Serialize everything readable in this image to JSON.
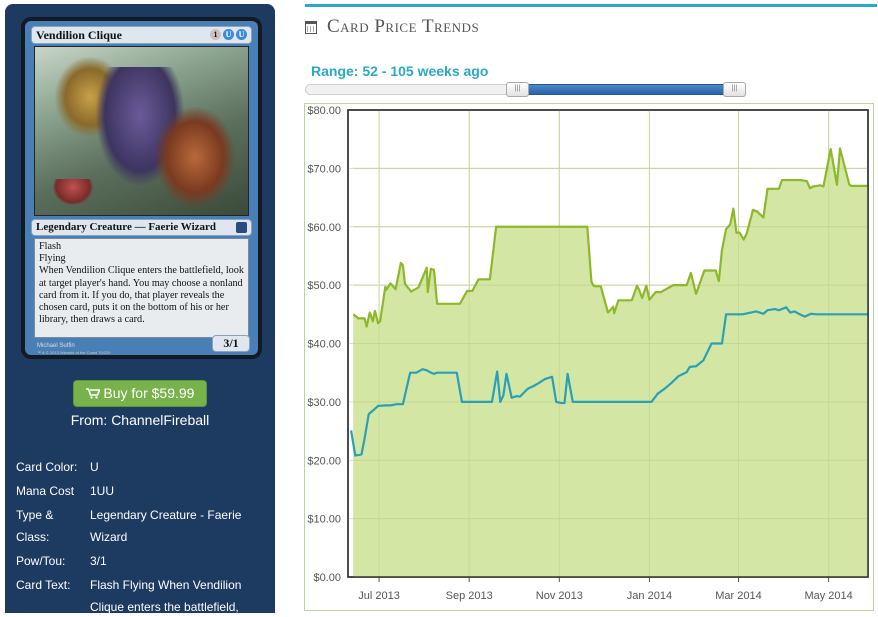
{
  "card": {
    "name": "Vendilion Clique",
    "mana": [
      "1",
      "U",
      "U"
    ],
    "type_line": "Legendary Creature — Faerie Wizard",
    "rules_text": [
      "Flash",
      "Flying",
      "When Vendilion Clique enters the battlefield, look at target player's hand. You may choose a nonland card from it. If you do, that player reveals the chosen card, puts it on the bottom of his or her library, then draws a card."
    ],
    "power_toughness": "3/1",
    "artist": "Michael Sutfin",
    "copyright": "™ & © 2013 Wizards of the Coast 70/229"
  },
  "buy": {
    "label": "Buy for $59.99",
    "icon": "shopping-cart-icon",
    "from": "From: ChannelFireball"
  },
  "attributes": [
    {
      "key": "Card Color:",
      "value": "U"
    },
    {
      "key": "Mana Cost",
      "value": "1UU"
    },
    {
      "key": "Type & Class:",
      "value": "Legendary Creature - Faerie Wizard"
    },
    {
      "key": "Pow/Tou:",
      "value": "3/1"
    },
    {
      "key": "Card Text:",
      "value": "Flash Flying When Vendilion Clique enters the battlefield,"
    }
  ],
  "header": {
    "title": "Card Price Trends",
    "icon": "calendar-icon"
  },
  "range": {
    "label": "Range: 52 - 105 weeks ago",
    "from": 52,
    "to": 105,
    "max": 105
  },
  "colors": {
    "accent": "#29a9c7",
    "sidebar": "#1d3a61",
    "buy": "#78b24a",
    "series_high": "#8db82a",
    "series_low": "#2aa0b8"
  },
  "chart_data": {
    "type": "area",
    "y_tick_labels": [
      "$0.00",
      "$10.00",
      "$20.00",
      "$30.00",
      "$40.00",
      "$50.00",
      "$60.00",
      "$70.00",
      "$80.00"
    ],
    "x_tick_labels": [
      "Jul 2013",
      "Sep 2013",
      "Nov 2013",
      "Jan 2014",
      "Mar 2014",
      "May 2014"
    ],
    "ylim": [
      0,
      80
    ],
    "x_unit": "weeks from the start of the plotted range",
    "x_ticks": [
      3,
      11.7,
      20.4,
      29.1,
      37.7,
      46.4
    ],
    "grid": true,
    "series": [
      {
        "x": [
          0.5,
          0.6,
          1,
          1.6,
          1.8,
          2.1,
          2.4,
          2.6,
          2.9,
          3.1,
          3.6,
          3.7,
          4.1,
          4.6,
          5.1,
          5.3,
          5.5,
          6.1,
          6.8,
          7.6,
          7.7,
          8,
          8.3,
          8.6,
          9.1,
          9.4,
          9.8,
          10,
          10.5,
          10.8,
          11.5,
          12,
          12.6,
          13.7,
          14.3,
          14.7,
          15.5,
          16.1,
          16.6,
          17,
          17.4,
          17.7,
          17.9,
          18.1,
          18.6,
          19.2,
          19.8,
          20.1,
          20.7,
          21.1,
          21.4,
          21.8,
          22.4,
          23.1,
          23.4,
          23.5,
          23.7,
          23.9,
          24.4,
          25.1,
          25.6,
          25.7,
          26.1,
          26.4,
          26.9,
          27.4,
          27.9,
          28.1,
          28.4,
          28.8,
          29.1,
          29.7,
          30.2,
          31.4,
          31.8,
          32.4,
          32.7,
          33.1,
          33.6,
          34.4,
          35.1,
          35.5,
          35.8,
          36.1,
          36.5,
          36.9,
          37.2,
          37.5,
          37.8,
          38.2,
          38.5,
          39.1,
          39.5,
          40.1,
          40.5,
          40.8,
          41.3,
          41.6,
          41.9,
          42.3,
          42.7,
          43.1,
          43.5,
          43.7,
          44.3,
          44.6,
          44.9,
          45.6,
          45.9,
          46.6,
          47.2,
          47.5,
          48.4,
          48.6,
          48.8,
          49.1,
          49.6,
          49.8,
          50.1,
          50.2
        ],
        "values": [
          44.9,
          44.9,
          44.3,
          44.3,
          42.9,
          45.3,
          43.8,
          45.6,
          43.5,
          43.8,
          49.7,
          49.2,
          50.3,
          49.3,
          53.8,
          53.4,
          50.2,
          48.9,
          49.6,
          53,
          48.8,
          52.8,
          52.6,
          46.8,
          46.8,
          46.8,
          46.8,
          46.8,
          46.8,
          46.8,
          49,
          49,
          51,
          51,
          60,
          60,
          60,
          60,
          60,
          60,
          60,
          60,
          60,
          60,
          60,
          60,
          60,
          60,
          60,
          60,
          60,
          60,
          60,
          60,
          52.9,
          50.6,
          49.9,
          49.8,
          49.8,
          45.3,
          46.3,
          45.2,
          47.4,
          47.4,
          47.4,
          47.4,
          49.9,
          49.2,
          47.8,
          49.9,
          47.5,
          48.8,
          48.8,
          50,
          50,
          50,
          50,
          52.1,
          48.5,
          52.5,
          52.5,
          52.5,
          50.7,
          56,
          59.6,
          60.4,
          63.1,
          59,
          59,
          57.8,
          58.9,
          62.9,
          62.6,
          61.6,
          66.5,
          66.5,
          66.5,
          66.5,
          68,
          68,
          68,
          68,
          68,
          68,
          67.8,
          66.6,
          66.9,
          67.1,
          66.9,
          73.3,
          67.2,
          73.4,
          67.2,
          67,
          67,
          67,
          67,
          67,
          67,
          67
        ]
      },
      {
        "x": [
          0.3,
          0.7,
          1.3,
          1.6,
          2,
          2.4,
          2.9,
          3.6,
          3.7,
          4.1,
          4.7,
          5.3,
          6,
          6.6,
          7.2,
          7.6,
          7.9,
          8.3,
          8.6,
          9.1,
          9.6,
          10.1,
          10.5,
          11,
          12.1,
          12.6,
          13.1,
          13.9,
          14.4,
          14.7,
          15,
          15.3,
          15.8,
          16.3,
          16.6,
          17.1,
          17.4,
          17.9,
          18.4,
          19,
          19.7,
          20.1,
          20.6,
          20.9,
          21.2,
          21.7,
          22.3,
          22.9,
          23.4,
          24,
          24.6,
          25.1,
          25.8,
          26.4,
          26.9,
          27.4,
          27.9,
          28.1,
          28.8,
          29.3,
          29.9,
          30.6,
          31.2,
          31.9,
          32.7,
          33,
          33.6,
          34.3,
          35.1,
          35.6,
          36.1,
          36.5,
          36.8,
          37.6,
          38.1,
          38.9,
          39.4,
          40.1,
          40.5,
          41.2,
          41.6,
          42.3,
          42.7,
          43.1,
          43.5,
          44.1,
          44.7,
          45.2,
          45.7,
          46.4,
          47.2,
          48.4,
          49.7,
          50.2
        ],
        "values": [
          25.1,
          20.8,
          21,
          23.7,
          27.9,
          28.5,
          29.3,
          29.4,
          29.4,
          29.4,
          29.6,
          29.6,
          35,
          35,
          35.6,
          35.4,
          35.1,
          34.8,
          35,
          35,
          35,
          35,
          35,
          30,
          30,
          30,
          30,
          30,
          35.2,
          30,
          31.1,
          34.8,
          30.7,
          31,
          30.9,
          31.8,
          32.3,
          32.7,
          33.2,
          33.9,
          34.3,
          30,
          29.8,
          29.8,
          34.8,
          30,
          30,
          30,
          30,
          30,
          30,
          30,
          30,
          30,
          30,
          30,
          30,
          30,
          30,
          30,
          31.4,
          32.3,
          33.2,
          34.4,
          35.1,
          36,
          36.1,
          37.1,
          40,
          40,
          40,
          45,
          45,
          45,
          45,
          45.3,
          45.5,
          45.1,
          45.7,
          45.9,
          45.7,
          46.2,
          45.3,
          45.5,
          45.1,
          44.6,
          45.1,
          45,
          45,
          45,
          45,
          45,
          45,
          45
        ]
      }
    ]
  }
}
